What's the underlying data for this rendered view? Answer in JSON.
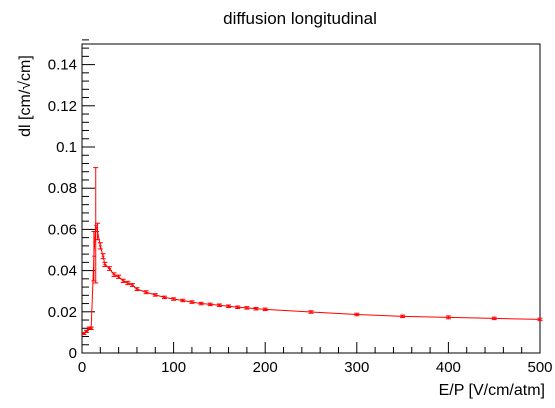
{
  "chart_data": {
    "type": "line",
    "title": "diffusion longitudinal",
    "xlabel": "E/P [V/cm/atm]",
    "ylabel": "dl [cm/√cm]",
    "ylabel_main": "dl [cm/",
    "ylabel_sqrt": "cm]",
    "xlim": [
      0,
      500
    ],
    "ylim": [
      0,
      0.15
    ],
    "xticks": [
      0,
      100,
      200,
      300,
      400,
      500
    ],
    "yticks": [
      0,
      0.02,
      0.04,
      0.06,
      0.08,
      0.1,
      0.12,
      0.14
    ],
    "xtick_labels": [
      "0",
      "100",
      "200",
      "300",
      "400",
      "500"
    ],
    "ytick_labels": [
      "0",
      "0.02",
      "0.04",
      "0.06",
      "0.08",
      "0.1",
      "0.12",
      "0.14"
    ],
    "grid": false,
    "series_color": "#ff0000",
    "series": [
      {
        "x": [
          2,
          5,
          8,
          10,
          13,
          15,
          17,
          20,
          23,
          25,
          30,
          35,
          40,
          45,
          50,
          55,
          60,
          70,
          80,
          90,
          100,
          110,
          120,
          130,
          140,
          150,
          160,
          170,
          180,
          190,
          200,
          250,
          300,
          350,
          400,
          450,
          500
        ],
        "y": [
          0.0095,
          0.0105,
          0.012,
          0.012,
          0.047,
          0.062,
          0.059,
          0.052,
          0.047,
          0.043,
          0.041,
          0.038,
          0.037,
          0.035,
          0.034,
          0.033,
          0.031,
          0.0295,
          0.0282,
          0.027,
          0.0262,
          0.0255,
          0.0247,
          0.024,
          0.0236,
          0.0232,
          0.0227,
          0.0222,
          0.0219,
          0.0215,
          0.0212,
          0.0199,
          0.0187,
          0.0178,
          0.0173,
          0.0168,
          0.0163
        ],
        "err": [
          0.0005,
          0.0005,
          0.0006,
          0.0006,
          0.012,
          0.028,
          0.004,
          0.0015,
          0.0012,
          0.001,
          0.0009,
          0.0009,
          0.0008,
          0.0008,
          0.0008,
          0.0007,
          0.0007,
          0.0007,
          0.0006,
          0.0006,
          0.0006,
          0.0006,
          0.0006,
          0.0006,
          0.0006,
          0.0006,
          0.0006,
          0.0006,
          0.0006,
          0.0006,
          0.0006,
          0.0006,
          0.0006,
          0.0006,
          0.0007,
          0.0006,
          0.0006
        ]
      }
    ]
  }
}
